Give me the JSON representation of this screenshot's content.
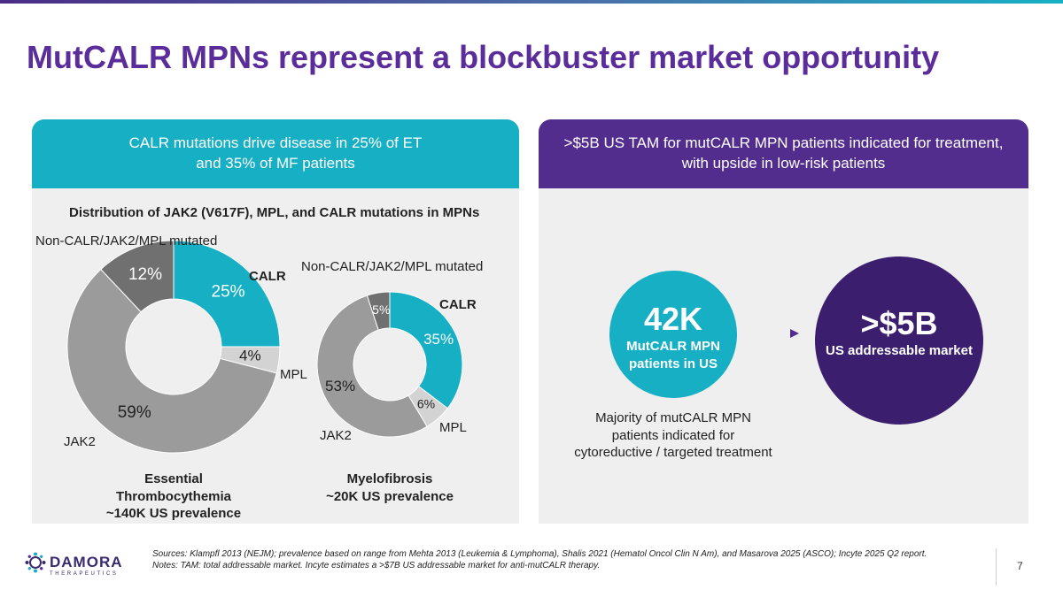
{
  "title": "MutCALR MPNs represent a blockbuster market opportunity",
  "colors": {
    "calr": "#17afc4",
    "mpl": "#d3d3d3",
    "jak2": "#9b9b9b",
    "other": "#707070",
    "purple": "#532d8e",
    "dark_purple": "#3b1f6e"
  },
  "left_panel": {
    "header": "CALR mutations drive disease in 25% of ET\nand 35% of MF patients",
    "chart_title": "Distribution of JAK2 (V617F), MPL, and CALR mutations in MPNs"
  },
  "right_panel": {
    "header": ">$5B US TAM for mutCALR MPN patients indicated for treatment,\nwith upside in low-risk patients",
    "patients": {
      "value": "42K",
      "label": "MutCALR MPN\npatients in US"
    },
    "market": {
      "value": ">$5B",
      "label": "US addressable market"
    },
    "note": "Majority of mutCALR MPN patients indicated for cytoreductive / targeted treatment"
  },
  "chart_data": [
    {
      "type": "pie",
      "title": "Distribution of JAK2 (V617F), MPL, and CALR mutations in MPNs",
      "caption": "Essential\nThrombocythemia\n~140K US prevalence",
      "categories": [
        "CALR",
        "MPL",
        "JAK2",
        "Non-CALR/JAK2/MPL mutated"
      ],
      "values": [
        25,
        4,
        59,
        12
      ],
      "value_labels": [
        "25%",
        "4%",
        "59%",
        "12%"
      ],
      "category_labels": [
        "CALR",
        "MPL",
        "JAK2",
        "Non-CALR/JAK2/MPL\nmutated"
      ]
    },
    {
      "type": "pie",
      "title": "Distribution of JAK2 (V617F), MPL, and CALR mutations in MPNs",
      "caption": "Myelofibrosis\n~20K US prevalence",
      "categories": [
        "CALR",
        "MPL",
        "JAK2",
        "Non-CALR/JAK2/MPL mutated"
      ],
      "values": [
        35,
        6,
        53,
        5
      ],
      "value_labels": [
        "35%",
        "6%",
        "53%",
        "5%"
      ],
      "category_labels": [
        "CALR",
        "MPL",
        "JAK2",
        "Non-CALR/JAK2/MPL\nmutated"
      ]
    }
  ],
  "footer": {
    "sources": "Sources: Klampfl 2013 (NEJM); prevalence based on range from Mehta 2013 (Leukemia & Lymphoma), Shalis 2021 (Hematol Oncol Clin N Am), and Masarova 2025 (ASCO); Incyte 2025 Q2 report.",
    "notes": "Notes: TAM: total addressable market. Incyte estimates a >$7B US addressable market for anti-mutCALR therapy.",
    "page": "7"
  },
  "logo": {
    "name": "DAMORA",
    "tagline": "THERAPEUTICS"
  }
}
